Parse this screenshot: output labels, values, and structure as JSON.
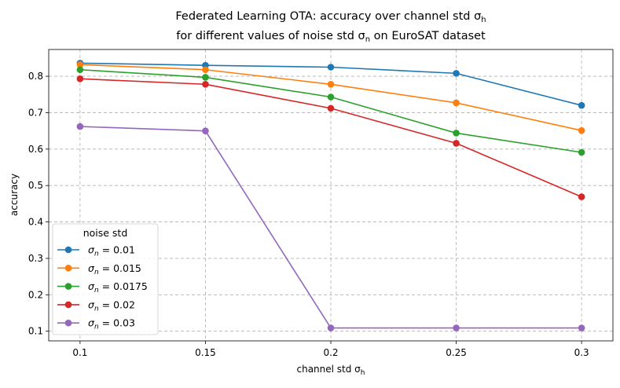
{
  "chart_data": {
    "type": "line",
    "title_line1": "Federated Learning OTA: accuracy over channel std σ",
    "title_line1_sub": "h",
    "title_line2_pre": "for different values of noise std σ",
    "title_line2_sub": "n",
    "title_line2_post": " on EuroSAT dataset",
    "xlabel": "channel std σ",
    "xlabel_sub": "h",
    "ylabel": "accuracy",
    "x": [
      0.1,
      0.15,
      0.2,
      0.25,
      0.3
    ],
    "x_tick_labels": [
      "0.1",
      "0.15",
      "0.2",
      "0.25",
      "0.3"
    ],
    "y_ticks": [
      0.1,
      0.2,
      0.3,
      0.4,
      0.5,
      0.6,
      0.7,
      0.8
    ],
    "y_tick_labels": [
      "0.1",
      "0.2",
      "0.3",
      "0.4",
      "0.5",
      "0.6",
      "0.7",
      "0.8"
    ],
    "xlim": [
      0.0875,
      0.3125
    ],
    "ylim": [
      0.0735,
      0.8735
    ],
    "grid": true,
    "legend_title": "noise std",
    "legend_position": "lower-left",
    "series": [
      {
        "name": "σ",
        "sub": "n",
        "value_label": " = 0.01",
        "color": "#1f77b4",
        "values": [
          0.836,
          0.83,
          0.825,
          0.808,
          0.72
        ]
      },
      {
        "name": "σ",
        "sub": "n",
        "value_label": " = 0.015",
        "color": "#ff7f0e",
        "values": [
          0.832,
          0.818,
          0.778,
          0.727,
          0.651
        ]
      },
      {
        "name": "σ",
        "sub": "n",
        "value_label": " = 0.0175",
        "color": "#2ca02c",
        "values": [
          0.818,
          0.797,
          0.743,
          0.644,
          0.591
        ]
      },
      {
        "name": "σ",
        "sub": "n",
        "value_label": " = 0.02",
        "color": "#d62728",
        "values": [
          0.793,
          0.778,
          0.712,
          0.616,
          0.469
        ]
      },
      {
        "name": "σ",
        "sub": "n",
        "value_label": " = 0.03",
        "color": "#9467bd",
        "values": [
          0.662,
          0.65,
          0.109,
          0.109,
          0.109
        ]
      }
    ]
  }
}
